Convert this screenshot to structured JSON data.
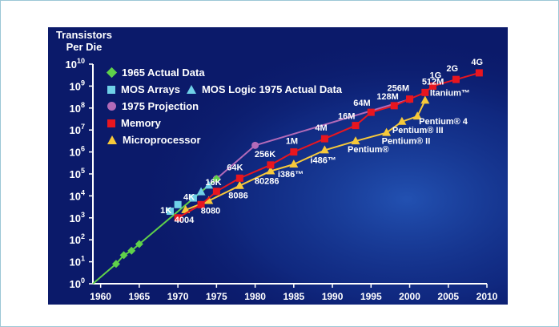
{
  "chart_data": {
    "type": "line",
    "ylabel": "Transistors\nPer Die",
    "y_scale": "log",
    "ylim": [
      1,
      10000000000
    ],
    "xlim": [
      1959,
      2010
    ],
    "x_ticks": [
      "1960",
      "1965",
      "1970",
      "1975",
      "1980",
      "1985",
      "1990",
      "1995",
      "2000",
      "2005",
      "2010"
    ],
    "y_ticks": [
      {
        "base": "10",
        "exp": "0"
      },
      {
        "base": "10",
        "exp": "1"
      },
      {
        "base": "10",
        "exp": "2"
      },
      {
        "base": "10",
        "exp": "3"
      },
      {
        "base": "10",
        "exp": "4"
      },
      {
        "base": "10",
        "exp": "5"
      },
      {
        "base": "10",
        "exp": "6"
      },
      {
        "base": "10",
        "exp": "7"
      },
      {
        "base": "10",
        "exp": "8"
      },
      {
        "base": "10",
        "exp": "9"
      },
      {
        "base": "10",
        "exp": "10"
      }
    ],
    "legend": [
      {
        "marker": "diamond",
        "color": "#5fd14a",
        "label": "1965 Actual Data"
      },
      {
        "marker": "square",
        "color": "#6fd0e8",
        "label": "MOS Arrays",
        "marker2": "triangle",
        "label2": "MOS Logic 1975 Actual Data"
      },
      {
        "marker": "circle",
        "color": "#b36ab8",
        "label": "1975 Projection"
      },
      {
        "marker": "square",
        "color": "#e8161f",
        "label": "Memory"
      },
      {
        "marker": "triangle",
        "color": "#f7c93a",
        "label": "Microprocessor"
      }
    ],
    "series": [
      {
        "name": "1965 Actual Data",
        "color": "#5fd14a",
        "marker": "diamond",
        "points": [
          [
            1959,
            1
          ],
          [
            1962,
            8
          ],
          [
            1963,
            20
          ],
          [
            1964,
            32
          ],
          [
            1965,
            64
          ],
          [
            1975,
            60000
          ]
        ]
      },
      {
        "name": "MOS Arrays",
        "color": "#6fd0e8",
        "marker": "square",
        "points": [
          [
            1969,
            2000
          ],
          [
            1970,
            4000
          ],
          [
            1972,
            8000
          ]
        ]
      },
      {
        "name": "MOS Logic 1975 Actual Data",
        "color": "#6fd0e8",
        "marker": "triangle",
        "points": [
          [
            1973,
            15000
          ],
          [
            1974,
            30000
          ]
        ]
      },
      {
        "name": "1975 Projection",
        "color": "#b36ab8",
        "marker": "circle",
        "points": [
          [
            1975,
            60000
          ],
          [
            1980,
            2000000
          ],
          [
            2000,
            250000000
          ]
        ]
      },
      {
        "name": "Memory",
        "color": "#e8161f",
        "marker": "square",
        "points": [
          [
            1970,
            1000
          ],
          [
            1973,
            4000
          ],
          [
            1975,
            16000
          ],
          [
            1978,
            64000
          ],
          [
            1982,
            256000
          ],
          [
            1985,
            1000000
          ],
          [
            1989,
            4000000
          ],
          [
            1993,
            16000000
          ],
          [
            1995,
            64000000
          ],
          [
            1998,
            128000000
          ],
          [
            2000,
            256000000
          ],
          [
            2002,
            512000000
          ],
          [
            2003,
            1000000000
          ],
          [
            2006,
            2000000000
          ],
          [
            2009,
            4000000000
          ]
        ]
      },
      {
        "name": "Microprocessor",
        "color": "#f7c93a",
        "marker": "triangle",
        "points": [
          [
            1971,
            2300
          ],
          [
            1974,
            6000
          ],
          [
            1978,
            29000
          ],
          [
            1982,
            134000
          ],
          [
            1985,
            275000
          ],
          [
            1989,
            1200000
          ],
          [
            1993,
            3100000
          ],
          [
            1997,
            7500000
          ],
          [
            1999,
            24000000
          ],
          [
            2001,
            42000000
          ],
          [
            2002,
            220000000
          ]
        ]
      }
    ],
    "annotations": [
      {
        "text": "1K",
        "x": 1970,
        "y": 1000,
        "color": "#ffffff"
      },
      {
        "text": "4K",
        "x": 1973,
        "y": 4000,
        "color": "#ffffff"
      },
      {
        "text": "16K",
        "x": 1975,
        "y": 16000,
        "color": "#ffffff"
      },
      {
        "text": "64K",
        "x": 1978,
        "y": 64000,
        "color": "#ffffff"
      },
      {
        "text": "256K",
        "x": 1982,
        "y": 256000,
        "color": "#ffffff"
      },
      {
        "text": "1M",
        "x": 1985,
        "y": 1000000,
        "color": "#ffffff"
      },
      {
        "text": "4M",
        "x": 1989,
        "y": 4000000,
        "color": "#ffffff"
      },
      {
        "text": "16M",
        "x": 1993,
        "y": 16000000,
        "color": "#ffffff"
      },
      {
        "text": "64M",
        "x": 1995,
        "y": 64000000,
        "color": "#ffffff"
      },
      {
        "text": "128M",
        "x": 1998,
        "y": 128000000,
        "color": "#ffffff"
      },
      {
        "text": "256M",
        "x": 2000,
        "y": 256000000,
        "color": "#ffffff"
      },
      {
        "text": "512M",
        "x": 2002,
        "y": 512000000,
        "color": "#ffffff"
      },
      {
        "text": "1G",
        "x": 2003,
        "y": 1000000000,
        "color": "#ffffff"
      },
      {
        "text": "2G",
        "x": 2006,
        "y": 2000000000,
        "color": "#ffffff"
      },
      {
        "text": "4G",
        "x": 2009,
        "y": 4000000000,
        "color": "#ffffff"
      },
      {
        "text": "4004",
        "x": 1971,
        "y": 2300,
        "color": "#ffffff"
      },
      {
        "text": "8080",
        "x": 1974,
        "y": 6000,
        "color": "#ffffff"
      },
      {
        "text": "8086",
        "x": 1978,
        "y": 29000,
        "color": "#ffffff"
      },
      {
        "text": "80286",
        "x": 1982,
        "y": 134000,
        "color": "#ffffff"
      },
      {
        "text": "i386™",
        "x": 1985,
        "y": 275000,
        "color": "#ffffff"
      },
      {
        "text": "i486™",
        "x": 1989,
        "y": 1200000,
        "color": "#ffffff"
      },
      {
        "text": "Pentium®",
        "x": 1993,
        "y": 3100000,
        "color": "#ffffff"
      },
      {
        "text": "Pentium® II",
        "x": 1997,
        "y": 7500000,
        "color": "#ffffff"
      },
      {
        "text": "Pentium® III",
        "x": 1999,
        "y": 24000000,
        "color": "#ffffff"
      },
      {
        "text": "Pentium® 4",
        "x": 2001,
        "y": 42000000,
        "color": "#ffffff"
      },
      {
        "text": "Itanium™",
        "x": 2002,
        "y": 220000000,
        "color": "#ffffff"
      }
    ]
  }
}
